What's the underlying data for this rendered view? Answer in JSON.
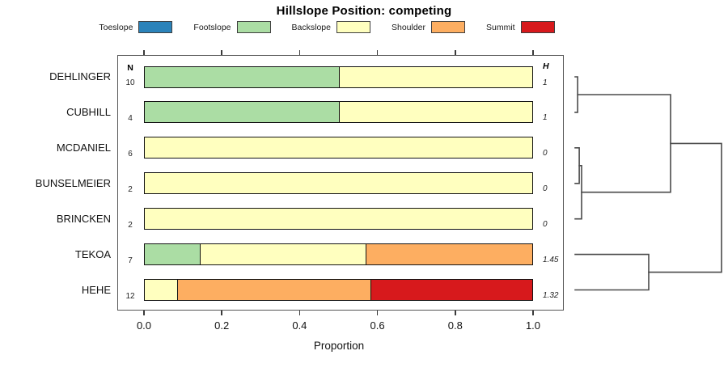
{
  "chart_data": {
    "type": "bar",
    "stacked": true,
    "orientation": "horizontal",
    "title": "Hillslope Position: competing",
    "xlabel": "Proportion",
    "xlim": [
      0.0,
      1.0
    ],
    "x_tick_labels": [
      "0.0",
      "0.2",
      "0.4",
      "0.6",
      "0.8",
      "1.0"
    ],
    "x_tick_values": [
      0.0,
      0.2,
      0.4,
      0.6,
      0.8,
      1.0
    ],
    "grid": false,
    "legend_position": "top",
    "categories": [
      "Toeslope",
      "Footslope",
      "Backslope",
      "Shoulder",
      "Summit"
    ],
    "colors": {
      "Toeslope": "#2B83BA",
      "Footslope": "#ABDDA4",
      "Backslope": "#FFFFBF",
      "Shoulder": "#FDAE61",
      "Summit": "#D7191C"
    },
    "columns": {
      "n": "N",
      "h": "H"
    },
    "rows": [
      {
        "label": "DEHLINGER",
        "n": "10",
        "h": "1",
        "segments": [
          {
            "category": "Footslope",
            "value": 0.5
          },
          {
            "category": "Backslope",
            "value": 0.5
          }
        ]
      },
      {
        "label": "CUBHILL",
        "n": "4",
        "h": "1",
        "segments": [
          {
            "category": "Footslope",
            "value": 0.5
          },
          {
            "category": "Backslope",
            "value": 0.5
          }
        ]
      },
      {
        "label": "MCDANIEL",
        "n": "6",
        "h": "0",
        "segments": [
          {
            "category": "Backslope",
            "value": 1.0
          }
        ]
      },
      {
        "label": "BUNSELMEIER",
        "n": "2",
        "h": "0",
        "segments": [
          {
            "category": "Backslope",
            "value": 1.0
          }
        ]
      },
      {
        "label": "BRINCKEN",
        "n": "2",
        "h": "0",
        "segments": [
          {
            "category": "Backslope",
            "value": 1.0
          }
        ]
      },
      {
        "label": "TEKOA",
        "n": "7",
        "h": "1.45",
        "segments": [
          {
            "category": "Footslope",
            "value": 0.143
          },
          {
            "category": "Backslope",
            "value": 0.428
          },
          {
            "category": "Shoulder",
            "value": 0.429
          }
        ]
      },
      {
        "label": "HEHE",
        "n": "12",
        "h": "1.32",
        "segments": [
          {
            "category": "Backslope",
            "value": 0.083
          },
          {
            "category": "Shoulder",
            "value": 0.5
          },
          {
            "category": "Summit",
            "value": 0.417
          }
        ]
      }
    ],
    "dendrogram": {
      "orientation": "right",
      "merges": [
        {
          "y1": 0,
          "h1": 0,
          "y2": 1,
          "h2": 0,
          "h": 0.017
        },
        {
          "y1": 2,
          "h1": 0,
          "y2": 3,
          "h2": 0,
          "h": 0.028
        },
        {
          "y1": 2.5,
          "h1": 0.028,
          "y2": 4,
          "h2": 0,
          "h": 0.044
        },
        {
          "y1": 0.5,
          "h1": 0.017,
          "y2": 3.25,
          "h2": 0.044,
          "h": 0.652
        },
        {
          "y1": 5,
          "h1": 0,
          "y2": 6,
          "h2": 0,
          "h": 0.503
        },
        {
          "y1": 1.875,
          "h1": 0.652,
          "y2": 5.5,
          "h2": 0.503,
          "h": 1.0
        }
      ]
    }
  }
}
